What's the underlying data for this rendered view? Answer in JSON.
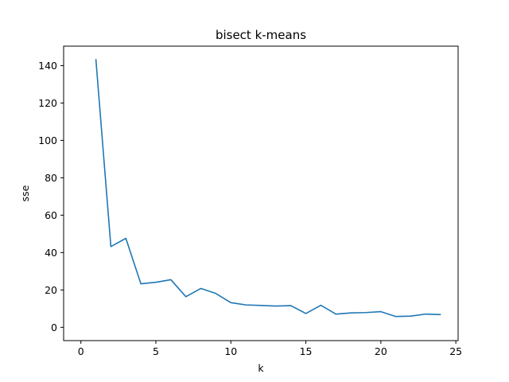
{
  "chart_data": {
    "type": "line",
    "title": "bisect k-means",
    "xlabel": "k",
    "ylabel": "sse",
    "xlim": [
      0,
      25
    ],
    "ylim": [
      0,
      150
    ],
    "xticks": [
      0,
      5,
      10,
      15,
      20,
      25
    ],
    "yticks": [
      0,
      20,
      40,
      60,
      80,
      100,
      120,
      140
    ],
    "grid": false,
    "series": [
      {
        "color": "#1f77b4",
        "x": [
          1,
          2,
          3,
          4,
          5,
          6,
          7,
          8,
          9,
          10,
          11,
          12,
          13,
          14,
          15,
          16,
          17,
          18,
          19,
          20,
          21,
          22,
          23,
          24
        ],
        "y": [
          143.5,
          43.2,
          47.6,
          23.3,
          24.1,
          25.5,
          16.4,
          20.8,
          18.1,
          13.2,
          12.0,
          11.7,
          11.4,
          11.6,
          7.4,
          11.8,
          7.1,
          7.7,
          7.9,
          8.4,
          5.8,
          6.0,
          7.1,
          6.8
        ]
      }
    ]
  }
}
